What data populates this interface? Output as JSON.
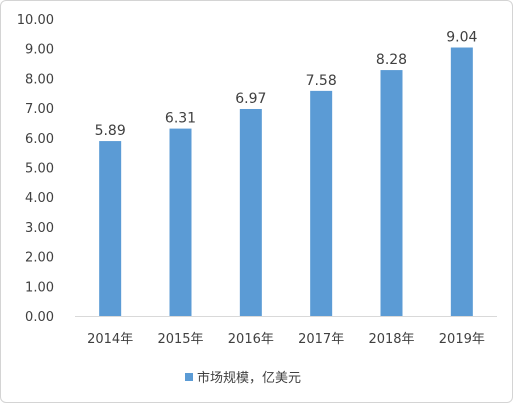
{
  "chart_data": {
    "type": "bar",
    "categories": [
      "2014年",
      "2015年",
      "2016年",
      "2017年",
      "2018年",
      "2019年"
    ],
    "series": [
      {
        "name": "市场规模，亿美元",
        "values": [
          5.89,
          6.31,
          6.97,
          7.58,
          8.28,
          9.04
        ],
        "labels": [
          "5.89",
          "6.31",
          "6.97",
          "7.58",
          "8.28",
          "9.04"
        ],
        "color": "#5b9bd5"
      }
    ],
    "y_ticks": [
      "0.00",
      "1.00",
      "2.00",
      "3.00",
      "4.00",
      "5.00",
      "6.00",
      "7.00",
      "8.00",
      "9.00",
      "10.00"
    ],
    "ylim": [
      0,
      10
    ],
    "grid": false,
    "legend_position": "bottom",
    "axis_color": "#d9d9d9",
    "text_color": "#404040"
  }
}
